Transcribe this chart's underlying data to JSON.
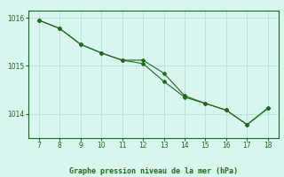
{
  "x_ticks": [
    7,
    8,
    9,
    10,
    11,
    12,
    13,
    14,
    15,
    16,
    17,
    18
  ],
  "line1_x": [
    7,
    8,
    9,
    10,
    11,
    12,
    13,
    14,
    15,
    16,
    17,
    18
  ],
  "line1_y": [
    1015.95,
    1015.78,
    1015.45,
    1015.27,
    1015.12,
    1015.12,
    1014.85,
    1014.38,
    1014.22,
    1014.08,
    1013.78,
    1014.12
  ],
  "line2_x": [
    7,
    8,
    9,
    10,
    11,
    12,
    13,
    14,
    15,
    16,
    17,
    18
  ],
  "line2_y": [
    1015.95,
    1015.78,
    1015.45,
    1015.27,
    1015.12,
    1015.05,
    1014.68,
    1014.35,
    1014.22,
    1014.08,
    1013.78,
    1014.12
  ],
  "line_color": "#1a6b1a",
  "bg_color": "#d8f5f0",
  "grid_color": "#aaddcc",
  "border_color": "#1a6b1a",
  "xlabel": "Graphe pression niveau de la mer (hPa)",
  "ylim": [
    1013.5,
    1016.15
  ],
  "yticks": [
    1014,
    1015,
    1016
  ],
  "xtick_fontsize": 5.5,
  "ytick_fontsize": 5.5,
  "xlabel_fontsize": 6.0
}
